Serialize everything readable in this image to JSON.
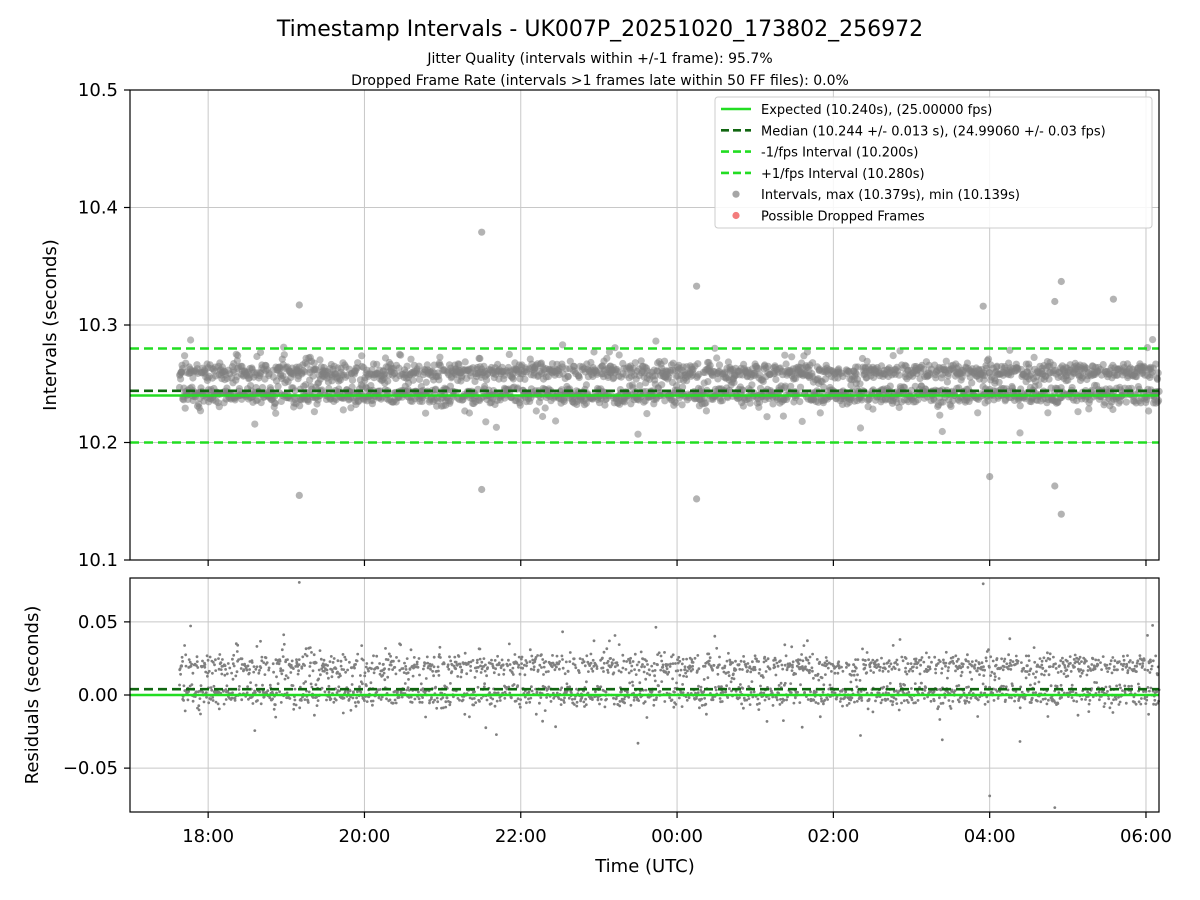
{
  "chart_data": [
    {
      "type": "scatter",
      "panel": "intervals",
      "title": "Timestamp Intervals - UK007P_20251020_173802_256972",
      "subtitle_1": "Jitter Quality (intervals within +/-1 frame): 95.7%",
      "subtitle_2": "Dropped Frame Rate (intervals >1 frames late within 50 FF files): 0.0%",
      "xlabel": "",
      "ylabel": "Intervals (seconds)",
      "x_range": [
        "2025-10-20 17:00",
        "2025-10-21 06:10"
      ],
      "ylim": [
        10.1,
        10.5
      ],
      "yticks": [
        "10.1",
        "10.2",
        "10.3",
        "10.4",
        "10.5"
      ],
      "grid": true,
      "legend_position": "top-right",
      "legend": [
        {
          "label": "Expected (10.240s), (25.00000 fps)",
          "style": "solid",
          "color": "#22dd22"
        },
        {
          "label": "Median (10.244 +/- 0.013 s), (24.99060 +/- 0.03 fps)",
          "style": "dashed",
          "color": "#116611"
        },
        {
          "label": "-1/fps Interval (10.200s)",
          "style": "dashed",
          "color": "#22dd22"
        },
        {
          "label": "+1/fps Interval (10.280s)",
          "style": "dashed",
          "color": "#22dd22"
        },
        {
          "label": "Intervals, max (10.379s), min (10.139s)",
          "style": "marker",
          "color": "#808080"
        },
        {
          "label": "Possible Dropped Frames",
          "style": "marker",
          "color": "#ee4444"
        }
      ],
      "reference_lines": {
        "expected": 10.24,
        "median": 10.244,
        "lower": 10.2,
        "upper": 10.28
      },
      "series": [
        {
          "kind": "intervals",
          "x_start": "2025-10-20 17:38",
          "x_end": "2025-10-21 06:10",
          "y_typical_bands": [
            10.24,
            10.26
          ],
          "y_max": 10.379,
          "y_min": 10.139,
          "outliers": [
            {
              "x": "2025-10-20 21:30",
              "y": 10.379
            },
            {
              "x": "2025-10-20 19:10",
              "y": 10.155
            },
            {
              "x": "2025-10-20 21:30",
              "y": 10.16
            },
            {
              "x": "2025-10-21 00:15",
              "y": 10.333
            },
            {
              "x": "2025-10-21 00:15",
              "y": 10.152
            },
            {
              "x": "2025-10-21 04:55",
              "y": 10.337
            },
            {
              "x": "2025-10-21 04:50",
              "y": 10.32
            },
            {
              "x": "2025-10-21 04:55",
              "y": 10.139
            },
            {
              "x": "2025-10-21 04:50",
              "y": 10.163
            },
            {
              "x": "2025-10-21 05:35",
              "y": 10.322
            },
            {
              "x": "2025-10-21 03:55",
              "y": 10.316
            },
            {
              "x": "2025-10-20 19:10",
              "y": 10.317
            },
            {
              "x": "2025-10-21 04:00",
              "y": 10.171
            }
          ]
        }
      ]
    },
    {
      "type": "scatter",
      "panel": "residuals",
      "xlabel": "Time (UTC)",
      "ylabel": "Residuals (seconds)",
      "x_range": [
        "2025-10-20 17:00",
        "2025-10-21 06:10"
      ],
      "xticks": [
        "18:00",
        "20:00",
        "22:00",
        "00:00",
        "02:00",
        "04:00",
        "06:00"
      ],
      "ylim": [
        -0.08,
        0.08
      ],
      "yticks": [
        "−0.05",
        "0.00",
        "0.05"
      ],
      "grid": true,
      "reference_lines": {
        "expected": 0.0,
        "median": 0.004
      },
      "series": [
        {
          "kind": "residuals",
          "x_start": "2025-10-20 17:38",
          "x_end": "2025-10-21 06:10",
          "y_typical_bands": [
            0.0,
            0.02
          ],
          "y_max": 0.08,
          "y_min": -0.08
        }
      ]
    }
  ],
  "colors": {
    "expected": "#22dd22",
    "median": "#116611",
    "bounds": "#22dd22",
    "points": "#808080",
    "dropped": "#ee4444",
    "grid": "#c8c8c8"
  }
}
